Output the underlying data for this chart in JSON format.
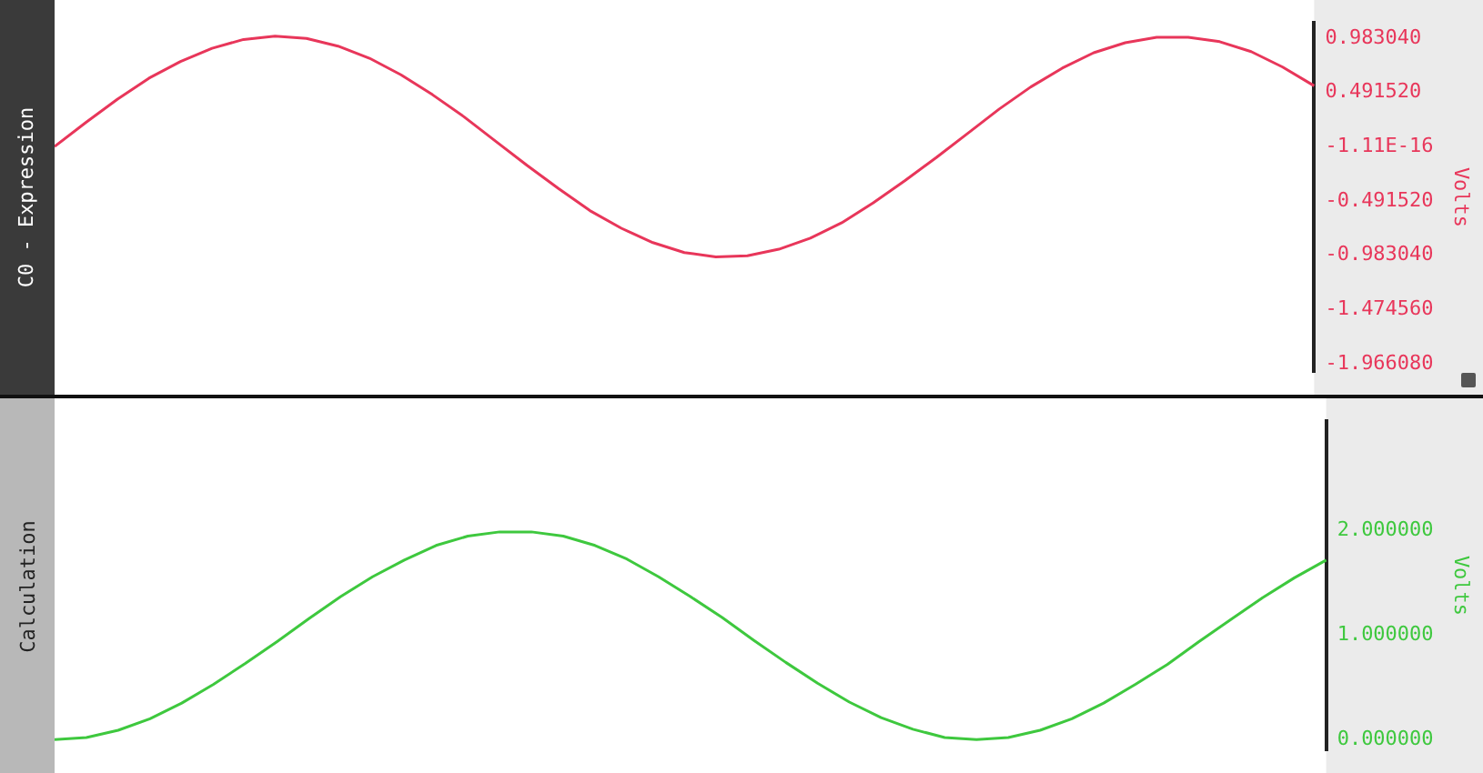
{
  "chart_data": [
    {
      "type": "line",
      "title": "C0 - Expression",
      "ylabel": "Volts",
      "tick_labels": "y",
      "categories": [
        null,
        null,
        null,
        null,
        null,
        null,
        null,
        null,
        null,
        null,
        null,
        null,
        null,
        null,
        null,
        null,
        null,
        null,
        null,
        null,
        null,
        null,
        null,
        null,
        null,
        null,
        null,
        null,
        null,
        null,
        null,
        null,
        null,
        null,
        null,
        null,
        null,
        null,
        null,
        null,
        null
      ],
      "series": [
        {
          "color": "#e8365a",
          "values": [
            0,
            0.22,
            0.43,
            0.62,
            0.77,
            0.89,
            0.97,
            1.0,
            0.98,
            0.91,
            0.8,
            0.65,
            0.47,
            0.27,
            0.05,
            -0.17,
            -0.38,
            -0.58,
            -0.74,
            -0.87,
            -0.96,
            -1.0,
            -0.99,
            -0.93,
            -0.83,
            -0.69,
            -0.51,
            -0.31,
            -0.1,
            0.12,
            0.34,
            0.54,
            0.71,
            0.85,
            0.94,
            0.99,
            0.99,
            0.95,
            0.86,
            0.72,
            0.55
          ]
        }
      ],
      "ylim": [
        -2.04,
        1.12
      ],
      "yticks": [
        {
          "value": 0.98304,
          "label": "0.983040"
        },
        {
          "value": 0.49152,
          "label": "0.491520"
        },
        {
          "value": 0,
          "label": "-1.11E-16"
        },
        {
          "value": -0.49152,
          "label": "-0.491520"
        },
        {
          "value": -0.98304,
          "label": "-0.983040"
        },
        {
          "value": -1.47456,
          "label": "-1.474560"
        },
        {
          "value": -1.96608,
          "label": "-1.966080"
        }
      ]
    },
    {
      "type": "line",
      "title": "Calculation",
      "ylabel": "Volts",
      "tick_labels": "y",
      "categories": [
        null,
        null,
        null,
        null,
        null,
        null,
        null,
        null,
        null,
        null,
        null,
        null,
        null,
        null,
        null,
        null,
        null,
        null,
        null,
        null,
        null,
        null,
        null,
        null,
        null,
        null,
        null,
        null,
        null,
        null,
        null,
        null,
        null,
        null,
        null,
        null,
        null,
        null,
        null,
        null,
        null
      ],
      "series": [
        {
          "color": "#3ec83e",
          "values": [
            0,
            0.02,
            0.09,
            0.2,
            0.35,
            0.53,
            0.73,
            0.94,
            1.16,
            1.37,
            1.56,
            1.72,
            1.86,
            1.95,
            1.99,
            1.99,
            1.95,
            1.86,
            1.73,
            1.56,
            1.37,
            1.17,
            0.95,
            0.74,
            0.54,
            0.36,
            0.21,
            0.1,
            0.02,
            0,
            0.02,
            0.09,
            0.2,
            0.35,
            0.53,
            0.72,
            0.94,
            1.15,
            1.36,
            1.55,
            1.72
          ]
        }
      ],
      "ylim": [
        -0.1,
        3.05
      ],
      "yticks": [
        {
          "value": 2,
          "label": "2.000000"
        },
        {
          "value": 1,
          "label": "1.000000"
        },
        {
          "value": 0,
          "label": "0.000000"
        }
      ]
    }
  ]
}
